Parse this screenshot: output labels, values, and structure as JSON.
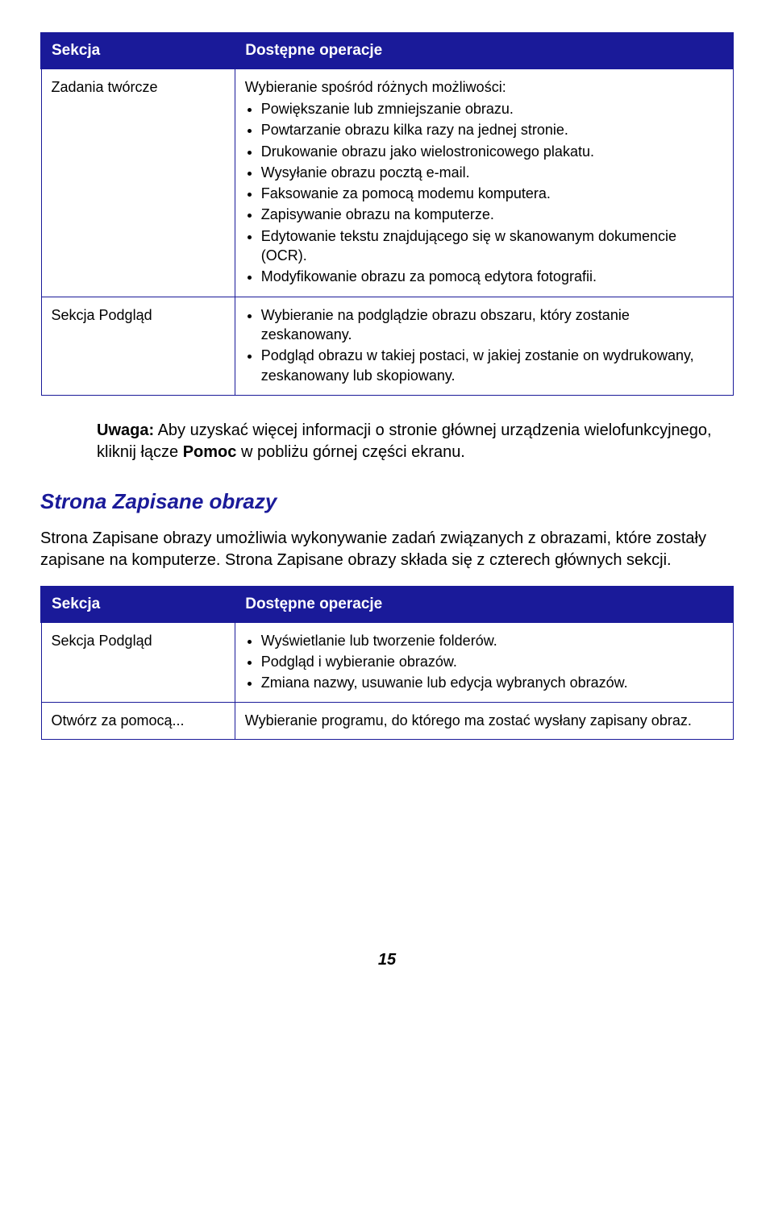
{
  "table1": {
    "header_left": "Sekcja",
    "header_right": "Dostępne operacje",
    "rows": [
      {
        "left": "Zadania twórcze",
        "intro": "Wybieranie spośród różnych możliwości:",
        "items": [
          "Powiększanie lub zmniejszanie obrazu.",
          "Powtarzanie obrazu kilka razy na jednej stronie.",
          "Drukowanie obrazu jako wielostronicowego plakatu.",
          "Wysyłanie obrazu pocztą e-mail.",
          "Faksowanie za pomocą modemu komputera.",
          "Zapisywanie obrazu na komputerze.",
          "Edytowanie tekstu znajdującego się w skanowanym dokumencie (OCR).",
          "Modyfikowanie obrazu za pomocą edytora fotografii."
        ]
      },
      {
        "left": "Sekcja Podgląd",
        "items": [
          "Wybieranie na podglądzie obrazu obszaru, który zostanie zeskanowany.",
          "Podgląd obrazu w takiej postaci, w jakiej zostanie on wydrukowany, zeskanowany lub skopiowany."
        ]
      }
    ]
  },
  "note": {
    "label": "Uwaga:",
    "text_before": " Aby uzyskać więcej informacji o stronie głównej urządzenia wielofunkcyjnego, kliknij łącze ",
    "bold": "Pomoc",
    "text_after": " w pobliżu górnej części ekranu."
  },
  "heading": "Strona Zapisane obrazy",
  "paragraph": "Strona Zapisane obrazy umożliwia wykonywanie zadań związanych z obrazami, które zostały zapisane na komputerze. Strona Zapisane obrazy składa się z czterech głównych sekcji.",
  "table2": {
    "header_left": "Sekcja",
    "header_right": "Dostępne operacje",
    "rows": [
      {
        "left": "Sekcja Podgląd",
        "items": [
          "Wyświetlanie lub tworzenie folderów.",
          "Podgląd i wybieranie obrazów.",
          "Zmiana nazwy, usuwanie lub edycja wybranych obrazów."
        ]
      },
      {
        "left": "Otwórz za pomocą...",
        "plain": "Wybieranie programu, do którego ma zostać wysłany zapisany obraz."
      }
    ]
  },
  "page_number": "15"
}
